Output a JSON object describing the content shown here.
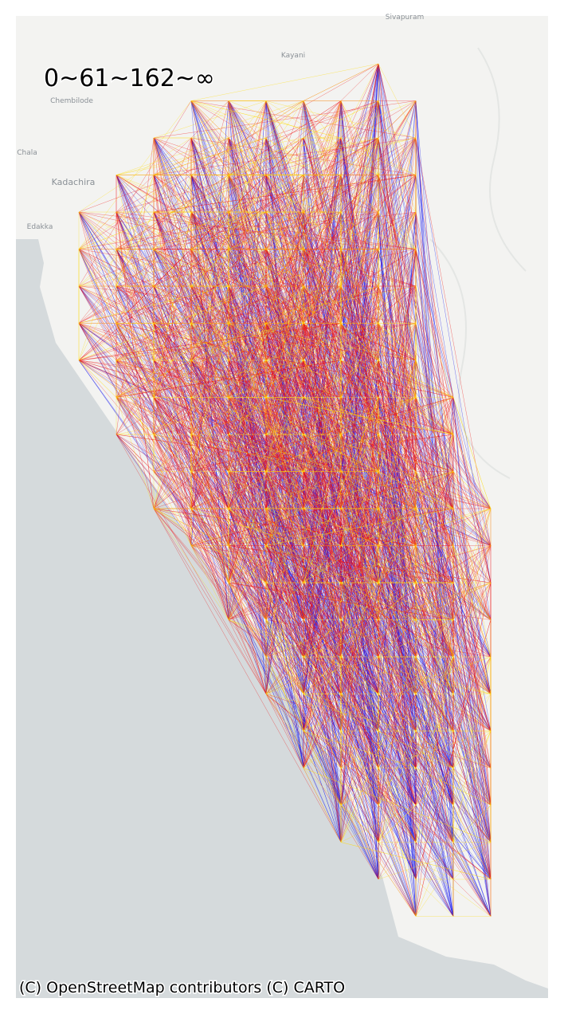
{
  "title": "0~61~162~∞",
  "attribution": "(C) OpenStreetMap contributors (C) CARTO",
  "places": [
    "Sivapuram",
    "Kayani",
    "Chembilode",
    "Chala",
    "Kadachira",
    "Edakka"
  ]
}
